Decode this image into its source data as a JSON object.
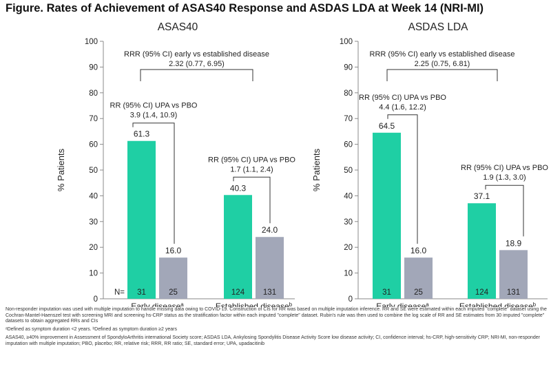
{
  "figure_title": "Figure. Rates of Achievement of ASAS40 Response and ASDAS LDA at Week 14 (NRI-MI)",
  "colors": {
    "upa": "#1fcfa4",
    "pbo": "#a2a7b8",
    "axis": "#8a8a8a",
    "text": "#222222"
  },
  "chart_data": [
    {
      "type": "bar",
      "title": "ASAS40",
      "ylabel": "% Patients",
      "ylim": [
        0,
        100
      ],
      "yticks": [
        0,
        10,
        20,
        30,
        40,
        50,
        60,
        70,
        80,
        90,
        100
      ],
      "categories": [
        "Early disease",
        "Established disease"
      ],
      "category_superscripts": [
        "a",
        "b"
      ],
      "n_label": "N=",
      "series": [
        {
          "values": [
            61.3,
            40.3
          ],
          "labels": [
            "61.3",
            "40.3"
          ],
          "n": [
            "31",
            "124"
          ]
        },
        {
          "values": [
            16.0,
            24.0
          ],
          "labels": [
            "16.0",
            "24.0"
          ],
          "n": [
            "25",
            "131"
          ]
        }
      ],
      "annotations": [
        {
          "type": "within",
          "group": 0,
          "lines": [
            "RR (95% CI) UPA vs PBO",
            "3.9 (1.4, 10.9)"
          ]
        },
        {
          "type": "within",
          "group": 1,
          "lines": [
            "RR (95% CI) UPA vs PBO",
            "1.7 (1.1, 2.4)"
          ]
        },
        {
          "type": "between",
          "lines": [
            "RRR (95% CI) early vs established disease",
            "2.32 (0.77, 6.95)"
          ]
        }
      ]
    },
    {
      "type": "bar",
      "title": "ASDAS LDA",
      "ylabel": "% Patients",
      "ylim": [
        0,
        100
      ],
      "yticks": [
        0,
        10,
        20,
        30,
        40,
        50,
        60,
        70,
        80,
        90,
        100
      ],
      "categories": [
        "Early disease",
        "Established disease"
      ],
      "category_superscripts": [
        "a",
        "b"
      ],
      "n_label": "",
      "series": [
        {
          "values": [
            64.5,
            37.1
          ],
          "labels": [
            "64.5",
            "37.1"
          ],
          "n": [
            "31",
            "124"
          ]
        },
        {
          "values": [
            16.0,
            18.9
          ],
          "labels": [
            "16.0",
            "18.9"
          ],
          "n": [
            "25",
            "131"
          ]
        }
      ],
      "annotations": [
        {
          "type": "within",
          "group": 0,
          "lines": [
            "RR (95% CI) UPA vs PBO",
            "4.4 (1.6, 12.2)"
          ]
        },
        {
          "type": "within",
          "group": 1,
          "lines": [
            "RR (95% CI) UPA vs PBO",
            "1.9 (1.3, 3.0)"
          ]
        },
        {
          "type": "between",
          "lines": [
            "RRR (95% CI) early vs established disease",
            "2.25 (0.75, 6.81)"
          ]
        }
      ]
    }
  ],
  "footnotes": {
    "method": "Non-responder imputation was used with multiple imputation to handle missing data owing to COVID-19. Construction of CIs for RR was based on multiple imputation inference. RR and SE were estimated within each imputed \"complete\" dataset using the Cochran-Mantel-Haenszel test with screening MRI and screening hs-CRP status as the stratification factor within each imputed \"complete\" dataset. Rubin's rule was then used to combine the log scale of RR and SE estimates from 30 imputed \"complete\" datasets to obtain aggregated RRs and CIs",
    "definitions": "ᵃDefined as symptom duration <2 years. ᵇDefined as symptom duration ≥2 years",
    "abbreviations": "ASAS40, ≥40% improvement in Assessment of SpondyloArthritis international Society score; ASDAS LDA, Ankylosing Spondylitis Disease Activity Score low disease activity; CI, confidence interval; hs-CRP, high-sensitivity CRP; NRI-MI, non-responder imputation with multiple imputation; PBO, placebo; RR, relative risk; RRR, RR ratio; SE, standard error; UPA, upadacitinib"
  }
}
